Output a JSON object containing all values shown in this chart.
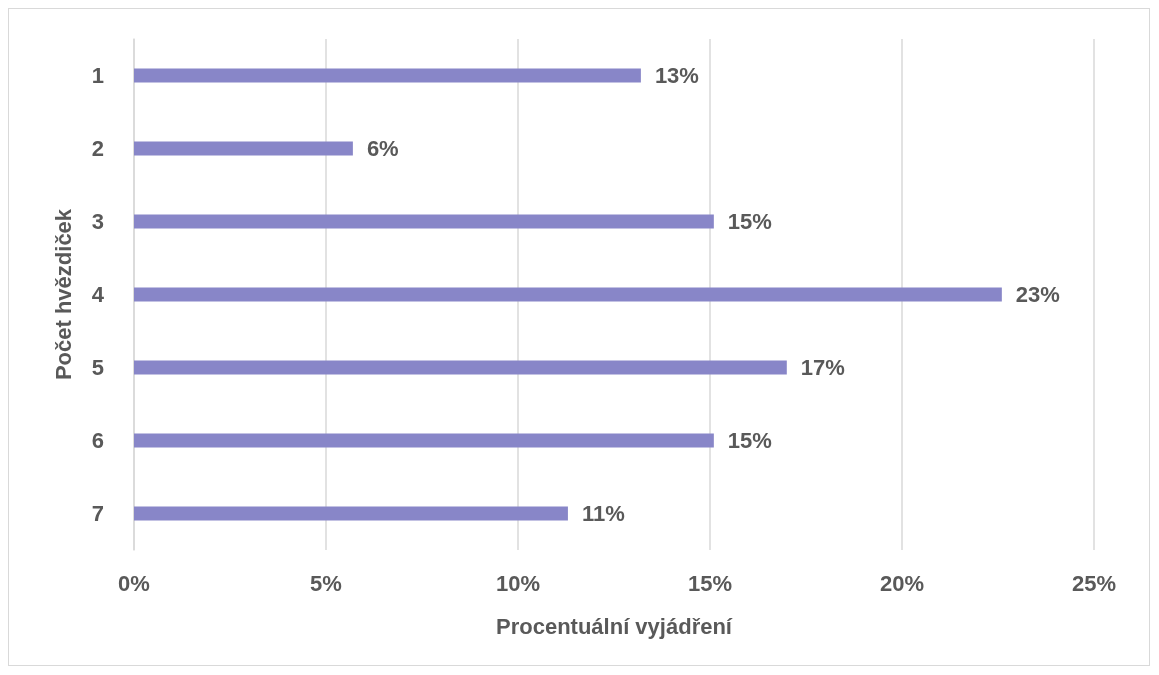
{
  "chart_data": {
    "type": "bar",
    "orientation": "horizontal",
    "xlabel": "Procentuální vyjádření",
    "ylabel": "Počet hvězdiček",
    "categories": [
      "1",
      "2",
      "3",
      "4",
      "5",
      "6",
      "7"
    ],
    "values": [
      13.2,
      5.7,
      15.1,
      22.6,
      17.0,
      15.1,
      11.3
    ],
    "value_labels": [
      "13%",
      "6%",
      "15%",
      "23%",
      "17%",
      "15%",
      "11%"
    ],
    "color": "#8886c8",
    "xlim": [
      0,
      25
    ],
    "xticks": [
      {
        "value": 0,
        "label": "0%"
      },
      {
        "value": 5,
        "label": "5%"
      },
      {
        "value": 10,
        "label": "10%"
      },
      {
        "value": 15,
        "label": "15%"
      },
      {
        "value": 20,
        "label": "20%"
      },
      {
        "value": 25,
        "label": "25%"
      }
    ],
    "grid": "x"
  }
}
